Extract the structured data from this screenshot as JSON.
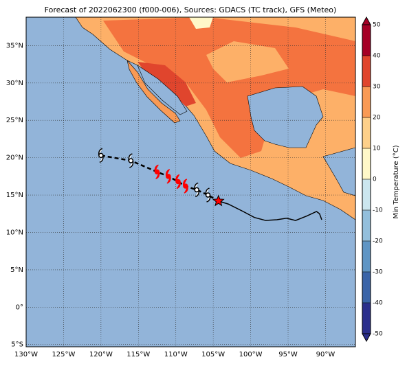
{
  "chart_data": {
    "type": "map",
    "title": "Forecast of 2022062300 (f000-006), Sources: GDACS (TC track), GFS (Meteo)",
    "xlim": [
      -130,
      -86
    ],
    "ylim": [
      -5.3,
      38.8
    ],
    "xticks": [
      {
        "value": -130,
        "label": "130°W"
      },
      {
        "value": -125,
        "label": "125°W"
      },
      {
        "value": -120,
        "label": "120°W"
      },
      {
        "value": -115,
        "label": "115°W"
      },
      {
        "value": -110,
        "label": "110°W"
      },
      {
        "value": -105,
        "label": "105°W"
      },
      {
        "value": -100,
        "label": "100°W"
      },
      {
        "value": -95,
        "label": "95°W"
      },
      {
        "value": -90,
        "label": "90°W"
      }
    ],
    "yticks": [
      {
        "value": -5,
        "label": "5°S"
      },
      {
        "value": 0,
        "label": "0°"
      },
      {
        "value": 5,
        "label": "5°N"
      },
      {
        "value": 10,
        "label": "10°N"
      },
      {
        "value": 15,
        "label": "15°N"
      },
      {
        "value": 20,
        "label": "20°N"
      },
      {
        "value": 25,
        "label": "25°N"
      },
      {
        "value": 30,
        "label": "30°N"
      },
      {
        "value": 35,
        "label": "35°N"
      }
    ],
    "grid": true,
    "colorbar": {
      "label": "Min Temperature (°C)",
      "lim": [
        -50,
        50
      ],
      "ticks": [
        -50,
        -40,
        -30,
        -20,
        -10,
        0,
        10,
        20,
        30,
        40,
        50
      ],
      "colors": [
        "#2b2f8c",
        "#3a64a8",
        "#5f95c4",
        "#93bfdc",
        "#cbe6ef",
        "#fff8c8",
        "#fdd08a",
        "#f99a55",
        "#e0452d",
        "#a50026"
      ]
    },
    "past_track": {
      "color": "#000000",
      "lon": [
        -104.3,
        -103,
        -101,
        -99.5,
        -98,
        -96.5,
        -95.2,
        -94,
        -92.5,
        -91.2,
        -90.8,
        -90.5
      ],
      "lat": [
        14.2,
        13.8,
        12.8,
        12,
        11.6,
        11.7,
        11.9,
        11.6,
        12.2,
        12.8,
        12.5,
        11.7
      ]
    },
    "forecast_track": {
      "lon": [
        -120,
        -116,
        -112.5,
        -111,
        -109.7,
        -108.7,
        -107.2,
        -105.7
      ],
      "lat": [
        20.3,
        19.6,
        18.1,
        17.5,
        16.8,
        16.2,
        15.7,
        15
      ],
      "colors": [
        "#ffffff",
        "#ffffff",
        "#ff0000",
        "#ff0000",
        "#ff0000",
        "#ff0000",
        "#ffffff",
        "#ffffff"
      ]
    },
    "current_position": {
      "lon": -104.3,
      "lat": 14.2,
      "color": "#ff0000"
    }
  }
}
